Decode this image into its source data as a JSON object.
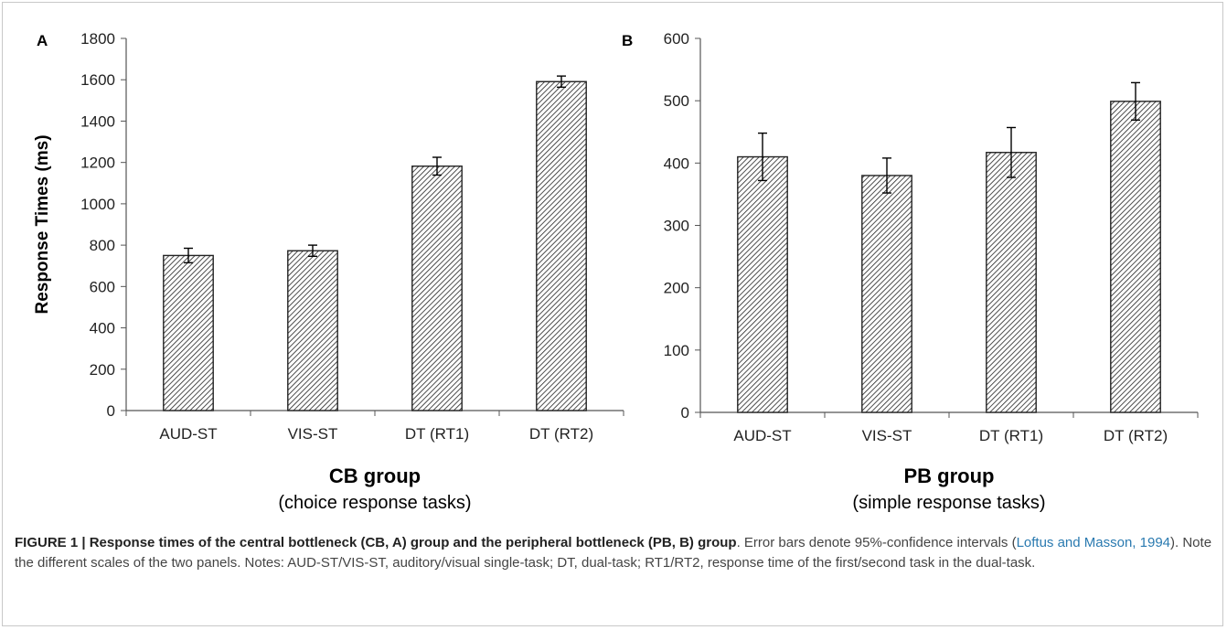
{
  "chart_data": [
    {
      "panel_label": "A",
      "type": "bar",
      "categories": [
        "AUD-ST",
        "VIS-ST",
        "DT (RT1)",
        "DT (RT2)"
      ],
      "values": [
        750,
        773,
        1182,
        1591
      ],
      "error": [
        35,
        27,
        43,
        27
      ],
      "ylabel": "Response Times (ms)",
      "ylim": [
        0,
        1800
      ],
      "yticks": [
        0,
        200,
        400,
        600,
        800,
        1000,
        1200,
        1400,
        1600,
        1800
      ],
      "group_title": "CB group",
      "group_subtitle": "(choice response tasks)",
      "grid": false,
      "bar_fill": "diagonal-hatch"
    },
    {
      "panel_label": "B",
      "type": "bar",
      "categories": [
        "AUD-ST",
        "VIS-ST",
        "DT (RT1)",
        "DT (RT2)"
      ],
      "values": [
        410,
        380,
        417,
        499
      ],
      "error": [
        38,
        28,
        40,
        30
      ],
      "ylabel": "",
      "ylim": [
        0,
        600
      ],
      "yticks": [
        0,
        100,
        200,
        300,
        400,
        500,
        600
      ],
      "group_title": "PB group",
      "group_subtitle": "(simple response tasks)",
      "grid": false,
      "bar_fill": "diagonal-hatch"
    }
  ],
  "caption": {
    "label": "FIGURE 1 | Response times of the central bottleneck (CB, A) group and the peripheral bottleneck (PB, B) group",
    "text1": ". Error bars denote 95%-confidence intervals (",
    "citation": "Loftus and Masson, 1994",
    "text2": "). Note the different scales of the two panels. Notes: AUD-ST/VIS-ST, auditory/visual single-task; DT, dual-task; RT1/RT2, response time of the first/second task in the dual-task."
  },
  "colors": {
    "bar_stroke": "#222222",
    "axis": "#555555",
    "caption_link": "#2a7ab0"
  }
}
